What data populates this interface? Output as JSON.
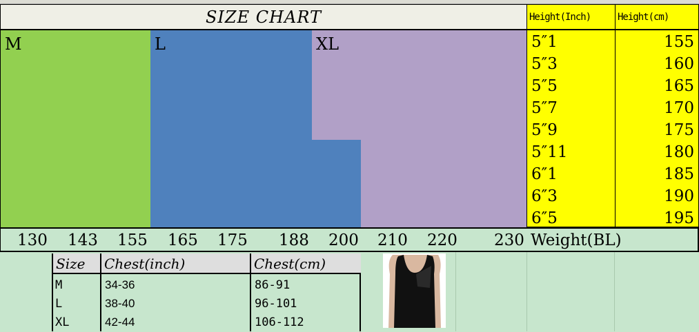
{
  "title": "SIZE CHART",
  "height_headers": {
    "inch": "Height(Inch)",
    "cm": "Height(cm)"
  },
  "size_bands": [
    {
      "label": "M",
      "color": "#92d050"
    },
    {
      "label": "L",
      "color": "#4f81bd"
    },
    {
      "label": "XL",
      "color": "#b1a0c7"
    }
  ],
  "heights_inch": [
    "5″1",
    "5″3",
    "5″5",
    "5″7",
    "5″9",
    "5″11",
    "6″1",
    "6″3",
    "6″5"
  ],
  "heights_cm": [
    "155",
    "160",
    "165",
    "170",
    "175",
    "180",
    "185",
    "190",
    "195"
  ],
  "weights": [
    "130",
    "143",
    "155",
    "165",
    "175",
    "188",
    "200",
    "210",
    "220",
    "230"
  ],
  "weight_label": "Weight(BL)",
  "chest_table": {
    "headers": [
      "Size",
      "Chest(inch)",
      "Chest(cm)"
    ],
    "rows": [
      [
        "M",
        "34-36",
        "86-91"
      ],
      [
        "L",
        "38-40",
        "96-101"
      ],
      [
        "XL",
        "42-44",
        "106-112"
      ]
    ]
  },
  "colors": {
    "background": "#c7e6cd",
    "height_columns": "#ffff00"
  }
}
